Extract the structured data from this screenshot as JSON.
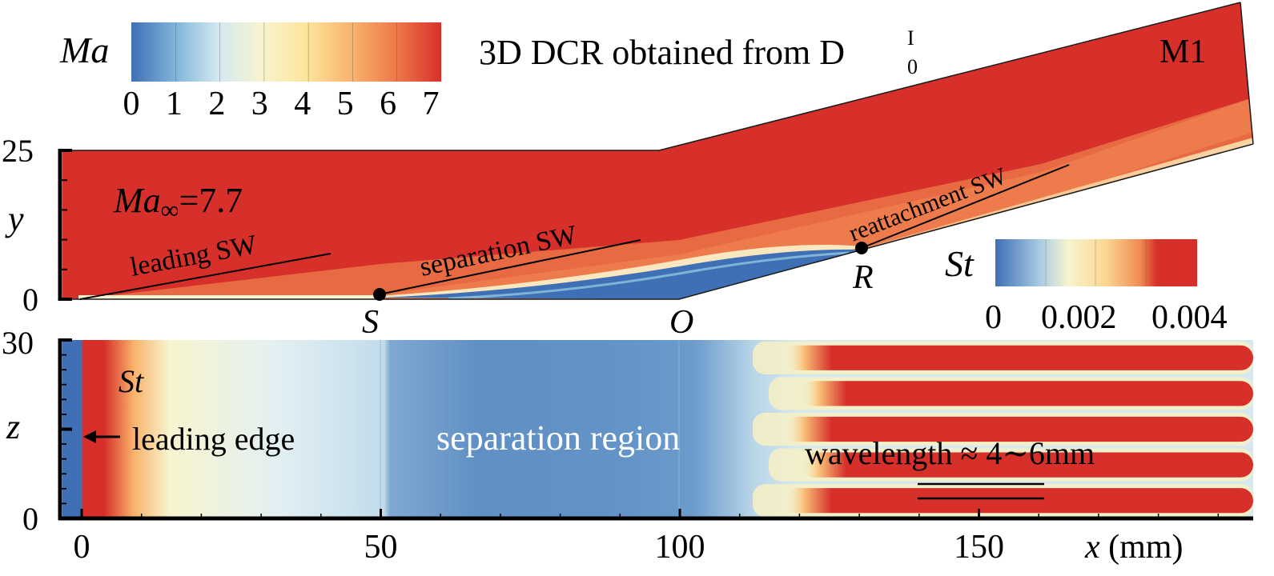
{
  "chart_data": [
    {
      "type": "heatmap",
      "panel": "side view (x-y plane)",
      "title_prefix": "3D DCR obtained from D",
      "title_sub": "0",
      "title_sup": "I",
      "case_label": "M1",
      "freestream_label": "Ma",
      "freestream_sub": "∞",
      "freestream_value": "=7.7",
      "ylabel": "y",
      "ylim": [
        0,
        25
      ],
      "y_ticks": [
        "0",
        "25"
      ],
      "colorbar": {
        "label": "Ma",
        "range": [
          0,
          7.5
        ],
        "ticks": [
          "0",
          "1",
          "2",
          "3",
          "4",
          "5",
          "6",
          "7"
        ],
        "colors": [
          "#3f6fb5",
          "#7fb3d8",
          "#d3e8f2",
          "#f7f4cf",
          "#fde49a",
          "#f9b36c",
          "#ee7648",
          "#d7302a"
        ]
      },
      "geometry_mm": {
        "flat_plate_end_x": 100,
        "ramp_end_x": 193,
        "ramp_end_y": 25
      },
      "points": [
        {
          "label": "S",
          "x": 50,
          "y": 0
        },
        {
          "label": "O",
          "x": 100,
          "y": 0
        },
        {
          "label": "R",
          "x": 131,
          "y": 9
        }
      ],
      "annotations": [
        "leading SW",
        "separation SW",
        "reattachment SW"
      ]
    },
    {
      "type": "heatmap",
      "panel": "wall view (x-z plane)",
      "field_label": "St",
      "xlabel_var": "x",
      "xlabel_unit": " (mm)",
      "ylabel": "z",
      "xlim": [
        -3,
        195
      ],
      "ylim": [
        0,
        30
      ],
      "x_ticks": [
        "0",
        "50",
        "100",
        "150"
      ],
      "y_ticks": [
        "0",
        "30"
      ],
      "streak_count": 5,
      "colorbar": {
        "label": "St",
        "range": [
          0,
          0.004
        ],
        "ticks": [
          "0",
          "0.002",
          "0.004"
        ],
        "colors": [
          "#3f6fb5",
          "#7fb3d8",
          "#f7f4cf",
          "#fbd68f",
          "#f08a52",
          "#d7302a",
          "#d7302a"
        ]
      },
      "annotations": {
        "leading_edge": "leading edge",
        "separation": "separation region",
        "wavelength": "wavelength ≈ 4∼6mm"
      }
    }
  ]
}
